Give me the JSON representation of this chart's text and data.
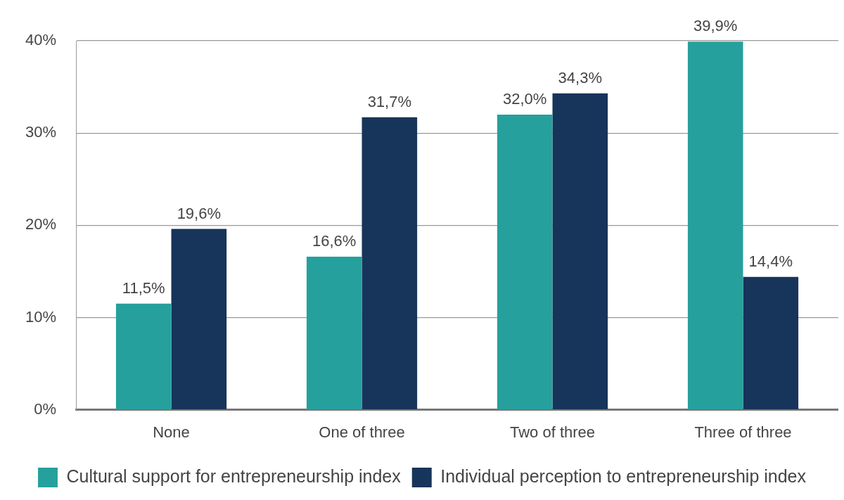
{
  "chart_data": {
    "type": "bar",
    "categories": [
      "None",
      "One of three",
      "Two of three",
      "Three of three"
    ],
    "series": [
      {
        "name": "Cultural support for entrepreneurship index",
        "color": "#26a09c",
        "values": [
          11.5,
          16.6,
          32.0,
          39.9
        ],
        "value_labels": [
          "11,5%",
          "16,6%",
          "32,0%",
          "39,9%"
        ]
      },
      {
        "name": "Individual perception to entrepreneurship index",
        "color": "#17345a",
        "values": [
          19.6,
          31.7,
          34.3,
          14.4
        ],
        "value_labels": [
          "19,6%",
          "31,7%",
          "34,3%",
          "14,4%"
        ]
      }
    ],
    "ylim": [
      0,
      40
    ],
    "yticks": [
      {
        "value": 0,
        "label": "0%"
      },
      {
        "value": 10,
        "label": "10%"
      },
      {
        "value": 20,
        "label": "20%"
      },
      {
        "value": 30,
        "label": "30%"
      },
      {
        "value": 40,
        "label": "40%"
      }
    ],
    "grid": "y",
    "legend": "bottom"
  }
}
